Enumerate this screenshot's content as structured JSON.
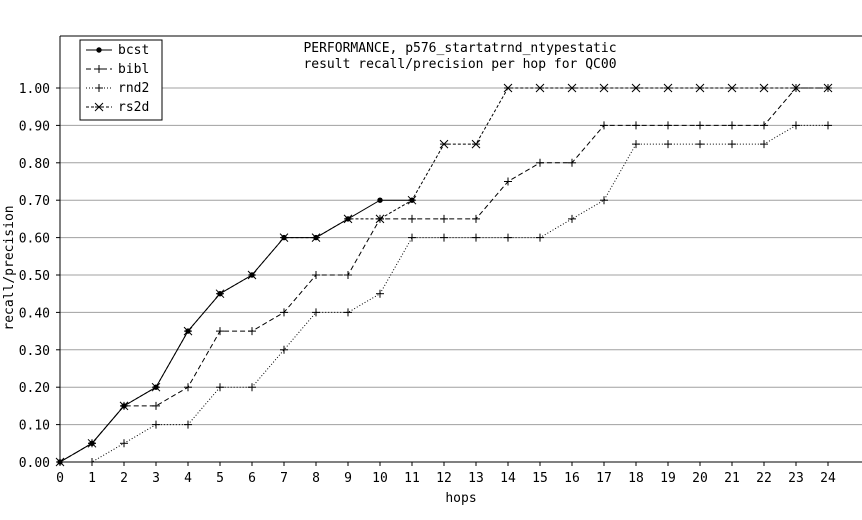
{
  "chart_data": {
    "type": "line",
    "title": "PERFORMANCE, p576_startatrnd_ntypestatic",
    "subtitle": "result recall/precision per hop for QC00",
    "xlabel": "hops",
    "ylabel": "recall/precision",
    "xlim": [
      0,
      24
    ],
    "ylim": [
      0,
      1.0
    ],
    "x_ticks": [
      "0",
      "1",
      "2",
      "3",
      "4",
      "5",
      "6",
      "7",
      "8",
      "9",
      "10",
      "11",
      "12",
      "13",
      "14",
      "15",
      "16",
      "17",
      "18",
      "19",
      "20",
      "21",
      "22",
      "23",
      "24"
    ],
    "y_ticks": [
      "0.00",
      "0.10",
      "0.20",
      "0.30",
      "0.40",
      "0.50",
      "0.60",
      "0.70",
      "0.80",
      "0.90",
      "1.00"
    ],
    "grid": "horizontal",
    "legend_position": "top-left",
    "series": [
      {
        "name": "bcst",
        "dash": "solid",
        "marker": "dot",
        "x": [
          0,
          1,
          2,
          3,
          4,
          5,
          6,
          7,
          8,
          9,
          10,
          11
        ],
        "values": [
          0.0,
          0.05,
          0.15,
          0.2,
          0.35,
          0.45,
          0.5,
          0.6,
          0.6,
          0.65,
          0.7,
          0.7
        ]
      },
      {
        "name": "bibl",
        "dash": "dashed",
        "marker": "plus",
        "x": [
          0,
          1,
          2,
          3,
          4,
          5,
          6,
          7,
          8,
          9,
          10,
          11,
          12,
          13,
          14,
          15,
          16,
          17,
          18,
          19,
          20,
          21,
          22,
          23,
          24
        ],
        "values": [
          0.0,
          0.05,
          0.15,
          0.15,
          0.2,
          0.35,
          0.35,
          0.4,
          0.5,
          0.5,
          0.65,
          0.65,
          0.65,
          0.65,
          0.75,
          0.8,
          0.8,
          0.9,
          0.9,
          0.9,
          0.9,
          0.9,
          0.9,
          1.0,
          1.0
        ]
      },
      {
        "name": "rnd2",
        "dash": "dotted",
        "marker": "plus",
        "x": [
          0,
          1,
          2,
          3,
          4,
          5,
          6,
          7,
          8,
          9,
          10,
          11,
          12,
          13,
          14,
          15,
          16,
          17,
          18,
          19,
          20,
          21,
          22,
          23,
          24
        ],
        "values": [
          0.0,
          0.0,
          0.05,
          0.1,
          0.1,
          0.2,
          0.2,
          0.3,
          0.4,
          0.4,
          0.45,
          0.6,
          0.6,
          0.6,
          0.6,
          0.6,
          0.65,
          0.7,
          0.85,
          0.85,
          0.85,
          0.85,
          0.85,
          0.9,
          0.9
        ]
      },
      {
        "name": "rs2d",
        "dash": "dense",
        "marker": "star",
        "x": [
          0,
          1,
          2,
          3,
          4,
          5,
          6,
          7,
          8,
          9,
          10,
          11,
          12,
          13,
          14,
          15,
          16,
          17,
          18,
          19,
          20,
          21,
          22,
          23,
          24
        ],
        "values": [
          0.0,
          0.05,
          0.15,
          0.2,
          0.35,
          0.45,
          0.5,
          0.6,
          0.6,
          0.65,
          0.65,
          0.7,
          0.85,
          0.85,
          1.0,
          1.0,
          1.0,
          1.0,
          1.0,
          1.0,
          1.0,
          1.0,
          1.0,
          1.0,
          1.0
        ]
      }
    ]
  }
}
